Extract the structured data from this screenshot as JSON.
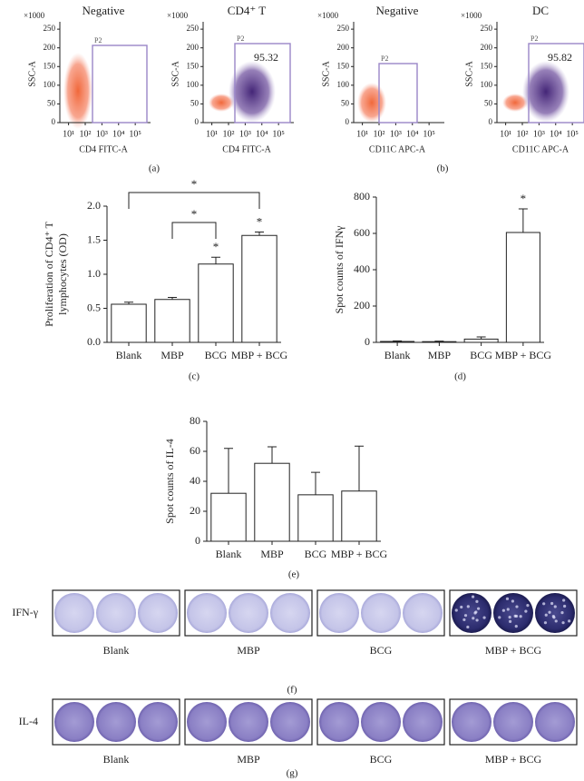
{
  "flow_panels": [
    {
      "title": "Negative",
      "scale": "×1000",
      "ylabel": "SSC-A",
      "xlabel": "CD4 FITC-A",
      "gate": "P2",
      "ylim": [
        0,
        260
      ],
      "yticks": [
        0,
        50,
        100,
        150,
        200,
        250
      ],
      "xscale": "log",
      "xlim": [
        3,
        500000
      ],
      "xticks": [
        {
          "value": 10,
          "label": "10¹"
        },
        {
          "value": 100,
          "label": "10²"
        },
        {
          "value": 1000,
          "label": "10³"
        },
        {
          "value": 10000,
          "label": "10⁴"
        },
        {
          "value": 100000,
          "label": "10⁵"
        }
      ]
    },
    {
      "title": "CD4⁺ T",
      "scale": "×1000",
      "ylabel": "SSC-A",
      "xlabel": "CD4 FITC-A",
      "gate": "P2",
      "percent": 95.32,
      "ylim": [
        0,
        260
      ],
      "yticks": [
        0,
        50,
        100,
        150,
        200,
        250
      ],
      "xscale": "log",
      "xlim": [
        3,
        500000
      ],
      "xticks": [
        {
          "value": 10,
          "label": "10¹"
        },
        {
          "value": 100,
          "label": "10²"
        },
        {
          "value": 1000,
          "label": "10³"
        },
        {
          "value": 10000,
          "label": "10⁴"
        },
        {
          "value": 100000,
          "label": "10⁵"
        }
      ]
    },
    {
      "title": "Negative",
      "scale": "×1000",
      "ylabel": "SSC-A",
      "xlabel": "CD11C APC-A",
      "gate": "P2",
      "ylim": [
        0,
        260
      ],
      "yticks": [
        0,
        50,
        100,
        150,
        200,
        250
      ],
      "xscale": "log",
      "xlim": [
        3,
        500000
      ],
      "xticks": [
        {
          "value": 10,
          "label": "10¹"
        },
        {
          "value": 100,
          "label": "10²"
        },
        {
          "value": 1000,
          "label": "10³"
        },
        {
          "value": 10000,
          "label": "10⁴"
        },
        {
          "value": 100000,
          "label": "10⁵"
        }
      ]
    },
    {
      "title": "DC",
      "scale": "×1000",
      "ylabel": "SSC-A",
      "xlabel": "CD11C APC-A",
      "gate": "P2",
      "percent": 95.82,
      "ylim": [
        0,
        260
      ],
      "yticks": [
        0,
        50,
        100,
        150,
        200,
        250
      ],
      "xscale": "log",
      "xlim": [
        3,
        500000
      ],
      "xticks": [
        {
          "value": 10,
          "label": "10¹"
        },
        {
          "value": 100,
          "label": "10²"
        },
        {
          "value": 1000,
          "label": "10³"
        },
        {
          "value": 10000,
          "label": "10⁴"
        },
        {
          "value": 100000,
          "label": "10⁵"
        }
      ]
    }
  ],
  "flow_panel_labels": [
    "(a)",
    "(b)"
  ],
  "chart_data": [
    {
      "type": "bar",
      "panel_label": "(c)",
      "ylabel": [
        "Proliferation of CD4⁺ T",
        "lymphocytes (OD)"
      ],
      "categories": [
        "Blank",
        "MBP",
        "BCG",
        "MBP + BCG"
      ],
      "values": [
        0.56,
        0.63,
        1.15,
        1.57
      ],
      "errors": [
        0.03,
        0.03,
        0.1,
        0.05
      ],
      "color": "#ffffff",
      "ylim": [
        0,
        2
      ],
      "yticks": [
        {
          "value": 0,
          "label": "0.0"
        },
        0.5,
        {
          "value": 1,
          "label": "1.0"
        },
        1.5,
        {
          "value": 2,
          "label": "2.0"
        }
      ],
      "significance": [
        {
          "label": "*",
          "over": "BCG"
        },
        {
          "label": "*",
          "over": "MBP + BCG"
        },
        {
          "label": "*",
          "between": [
            "MBP",
            "BCG"
          ]
        },
        {
          "label": "*",
          "between": [
            "Blank",
            "MBP + BCG"
          ]
        }
      ]
    },
    {
      "type": "bar",
      "panel_label": "(d)",
      "ylabel": [
        "Spot counts of IFNγ"
      ],
      "categories": [
        "Blank",
        "MBP",
        "BCG",
        "MBP + BCG"
      ],
      "values": [
        5,
        4,
        18,
        605
      ],
      "errors": [
        3,
        3,
        12,
        130
      ],
      "color": "#ffffff",
      "ylim": [
        0,
        800
      ],
      "yticks": [
        0,
        200,
        400,
        600,
        800
      ],
      "significance": [
        {
          "label": "*",
          "over": "MBP + BCG"
        }
      ]
    },
    {
      "type": "bar",
      "panel_label": "(e)",
      "ylabel": [
        "Spot counts of IL-4"
      ],
      "categories": [
        "Blank",
        "MBP",
        "BCG",
        "MBP + BCG"
      ],
      "values": [
        32,
        52,
        31,
        33.5
      ],
      "errors": [
        30,
        11,
        15,
        30
      ],
      "color": "#ffffff",
      "ylim": [
        0,
        80
      ],
      "yticks": [
        0,
        20,
        40,
        60,
        80
      ]
    }
  ],
  "elispot": {
    "rows": [
      "IFN-γ",
      "IL-4"
    ],
    "groups": [
      "Blank",
      "MBP",
      "BCG",
      "MBP + BCG"
    ],
    "panel_labels": [
      "(f)",
      "(g)"
    ]
  }
}
